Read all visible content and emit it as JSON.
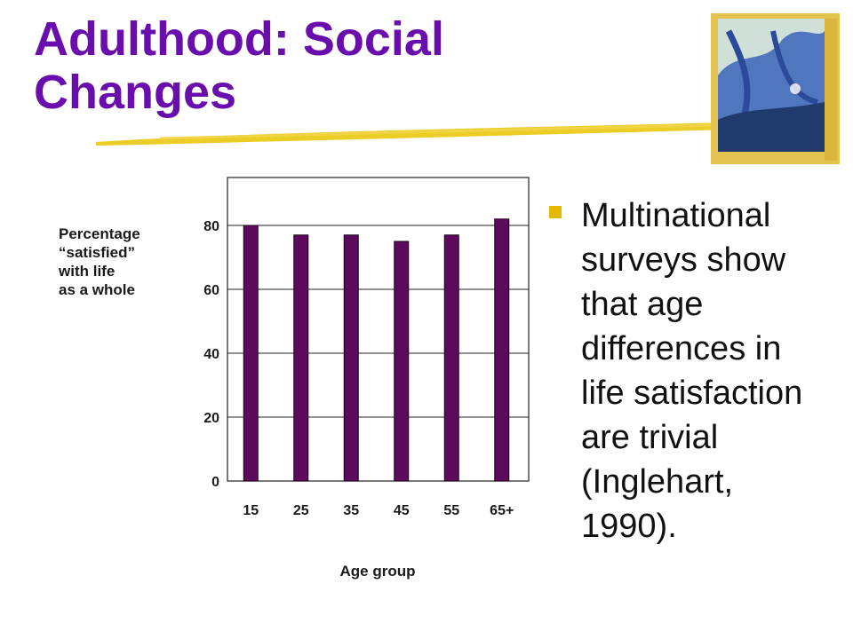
{
  "title": {
    "line1": "Adulthood: Social",
    "line2": "Changes"
  },
  "bullet": {
    "lines": [
      "Multinational",
      "surveys show",
      "that age",
      "differences in",
      "life satisfaction",
      "are trivial",
      "(Inglehart,",
      "1990)."
    ]
  },
  "colors": {
    "title": "#6a0dad",
    "bar": "#5c0a5c",
    "accent_stroke": "#e8c400"
  },
  "chart_data": {
    "type": "bar",
    "ylabel_lines": [
      "Percentage",
      "“satisfied”",
      "with life",
      "as a whole"
    ],
    "xlabel": "Age group",
    "categories": [
      "15",
      "25",
      "35",
      "45",
      "55",
      "65+"
    ],
    "values": [
      80,
      77,
      77,
      75,
      77,
      82
    ],
    "yticks": [
      "0",
      "20",
      "40",
      "60",
      "80"
    ],
    "ylim": [
      0,
      95
    ],
    "grid": true
  }
}
